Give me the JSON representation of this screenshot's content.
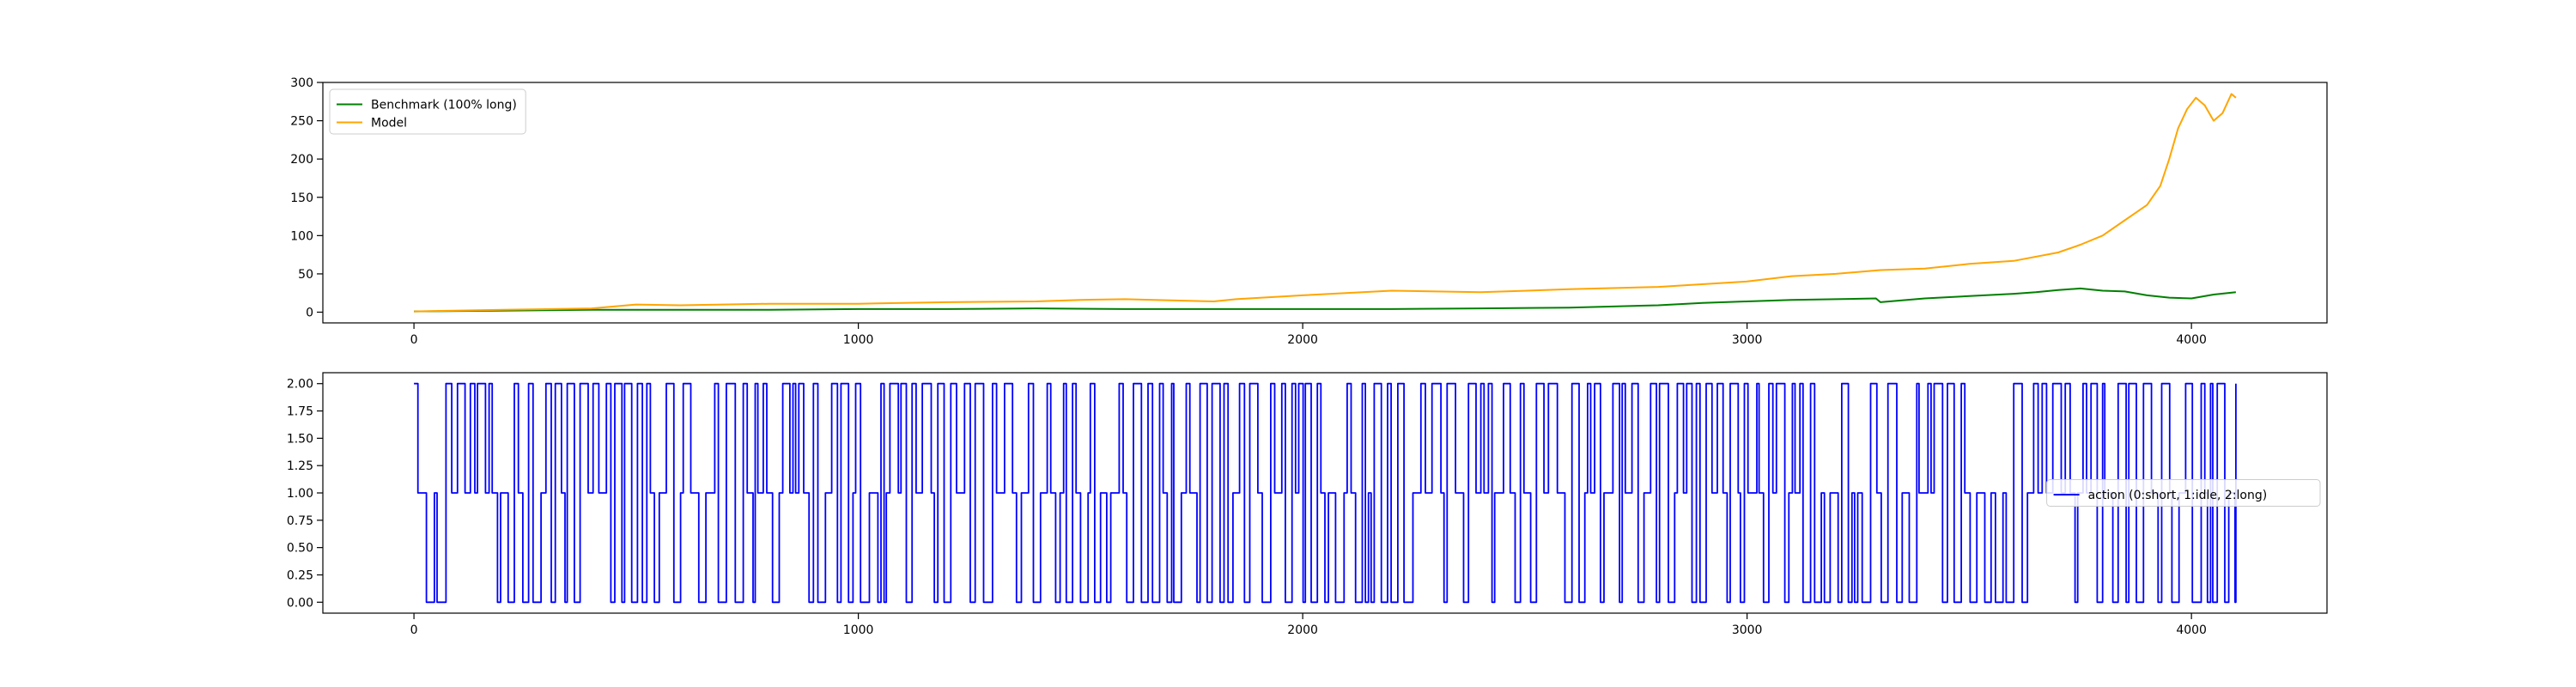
{
  "figure": {
    "background": "#ffffff"
  },
  "chart_data": [
    {
      "type": "line",
      "title": "",
      "xlabel": "",
      "ylabel": "",
      "xlim": [
        -205,
        4305
      ],
      "ylim": [
        -14,
        300
      ],
      "xticks": [
        0,
        1000,
        2000,
        3000,
        4000
      ],
      "xtick_labels": [
        "0",
        "1000",
        "2000",
        "3000",
        "4000"
      ],
      "yticks": [
        0,
        50,
        100,
        150,
        200,
        250,
        300
      ],
      "ytick_labels": [
        "0",
        "50",
        "100",
        "150",
        "200",
        "250",
        "300"
      ],
      "grid": false,
      "legend": {
        "location": "upper left"
      },
      "series": [
        {
          "name": "Benchmark (100% long)",
          "color": "#008000",
          "x": [
            0,
            200,
            400,
            600,
            800,
            1000,
            1200,
            1400,
            1600,
            1800,
            2000,
            2200,
            2400,
            2600,
            2800,
            2900,
            3000,
            3100,
            3200,
            3290,
            3300,
            3400,
            3500,
            3600,
            3650,
            3700,
            3750,
            3800,
            3850,
            3900,
            3950,
            4000,
            4050,
            4100
          ],
          "y": [
            1,
            2,
            3,
            3,
            3,
            4,
            4,
            5,
            4,
            4,
            4,
            4,
            5,
            6,
            9,
            12,
            14,
            16,
            17,
            18,
            13,
            18,
            21,
            24,
            26,
            29,
            31,
            28,
            27,
            22,
            19,
            18,
            23,
            26
          ]
        },
        {
          "name": "Model",
          "color": "#ffa500",
          "x": [
            0,
            200,
            400,
            500,
            600,
            800,
            1000,
            1200,
            1400,
            1500,
            1600,
            1800,
            1850,
            2000,
            2200,
            2400,
            2600,
            2800,
            3000,
            3100,
            3200,
            3300,
            3400,
            3500,
            3600,
            3700,
            3750,
            3800,
            3850,
            3900,
            3930,
            3950,
            3970,
            3990,
            4010,
            4030,
            4050,
            4070,
            4090,
            4100
          ],
          "y": [
            1,
            3,
            5,
            10,
            9,
            11,
            11,
            13,
            14,
            16,
            17,
            14,
            17,
            22,
            28,
            26,
            30,
            33,
            40,
            47,
            50,
            55,
            57,
            63,
            67,
            78,
            88,
            100,
            120,
            140,
            165,
            200,
            240,
            265,
            280,
            270,
            250,
            260,
            285,
            280
          ]
        }
      ]
    },
    {
      "type": "line",
      "title": "",
      "xlabel": "",
      "ylabel": "",
      "xlim": [
        -205,
        4305
      ],
      "ylim": [
        -0.1,
        2.1
      ],
      "xticks": [
        0,
        1000,
        2000,
        3000,
        4000
      ],
      "xtick_labels": [
        "0",
        "1000",
        "2000",
        "3000",
        "4000"
      ],
      "yticks": [
        0,
        0.25,
        0.5,
        0.75,
        1,
        1.25,
        1.5,
        1.75,
        2
      ],
      "ytick_labels": [
        "0.00",
        "0.25",
        "0.50",
        "0.75",
        "1.00",
        "1.25",
        "1.50",
        "1.75",
        "2.00"
      ],
      "grid": false,
      "legend": {
        "location": "center right"
      },
      "series": [
        {
          "name": "action (0:short, 1:idle, 2:long)",
          "color": "#0000ff",
          "step": true,
          "x": [
            0,
            4100
          ],
          "y": [
            2,
            2
          ],
          "switches_per_100_steps": 8,
          "hold_steps": [
            5,
            20
          ],
          "seed": 7
        }
      ]
    }
  ]
}
